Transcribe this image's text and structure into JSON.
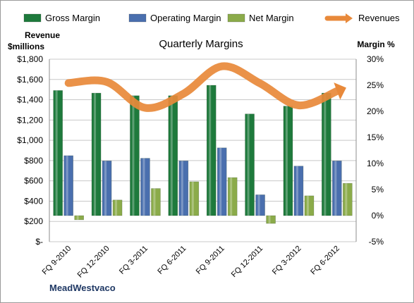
{
  "chart_data": {
    "type": "bar",
    "title": "Quarterly Margins",
    "company": "MeadWestvaco",
    "left_axis": {
      "label_line1": "Revenue",
      "label_line2": "$millions",
      "min": 0,
      "max": 1800,
      "ticks": [
        0,
        200,
        400,
        600,
        800,
        1000,
        1200,
        1400,
        1600,
        1800
      ],
      "tick_labels": [
        "$-",
        "$200",
        "$400",
        "$600",
        "$800",
        "$1,000",
        "$1,200",
        "$1,400",
        "$1,600",
        "$1,800"
      ]
    },
    "right_axis": {
      "label": "Margin %",
      "min": -5,
      "max": 30,
      "ticks": [
        -5,
        0,
        5,
        10,
        15,
        20,
        25,
        30
      ],
      "tick_labels": [
        "-5%",
        "0%",
        "5%",
        "10%",
        "15%",
        "20%",
        "25%",
        "30%"
      ]
    },
    "categories": [
      "FQ 9-2010",
      "FQ 12-2010",
      "FQ 3-2011",
      "FQ 6-2011",
      "FQ 9-2011",
      "FQ 12-2011",
      "FQ 3-2012",
      "FQ 6-2012"
    ],
    "series": [
      {
        "name": "Gross Margin",
        "type": "bar",
        "axis": "right",
        "color": "#1e7a3c",
        "values": [
          24.0,
          23.5,
          23.0,
          23.0,
          25.0,
          19.5,
          21.0,
          23.5
        ]
      },
      {
        "name": "Operating Margin",
        "type": "bar",
        "axis": "right",
        "color": "#4a6fae",
        "values": [
          11.5,
          10.5,
          11.0,
          10.5,
          13.0,
          4.0,
          9.5,
          10.5
        ]
      },
      {
        "name": "Net Margin",
        "type": "bar",
        "axis": "right",
        "color": "#8bab4a",
        "values": [
          -0.8,
          3.0,
          5.2,
          6.5,
          7.3,
          -1.5,
          3.8,
          6.2
        ]
      },
      {
        "name": "Revenues",
        "type": "line",
        "axis": "left",
        "color": "#e8893a",
        "values": [
          1565,
          1575,
          1320,
          1460,
          1730,
          1560,
          1345,
          1485
        ]
      }
    ],
    "grid": true,
    "legend_position": "top"
  }
}
